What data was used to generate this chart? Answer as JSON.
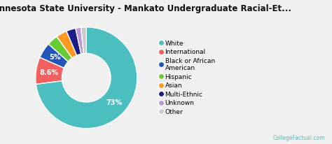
{
  "title": "Minnesota State University - Mankato Undergraduate Racial-Et...",
  "legend_labels": [
    "White",
    "International",
    "Black or African\nAmerican",
    "Hispanic",
    "Asian",
    "Multi-Ethnic",
    "Unknown",
    "Other"
  ],
  "values": [
    73,
    8.6,
    5,
    3.5,
    3.5,
    3.0,
    1.7,
    1.7
  ],
  "colors": [
    "#4bbfbf",
    "#f26060",
    "#2255bb",
    "#66cc33",
    "#ff9922",
    "#1a1f88",
    "#bb99dd",
    "#cccccc"
  ],
  "background_color": "#f0f0f0",
  "watermark": "CollegeFactual.com",
  "watermark_color": "#4bbfbf",
  "title_fontsize": 8.5,
  "legend_fontsize": 6.5,
  "watermark_fontsize": 5.5
}
